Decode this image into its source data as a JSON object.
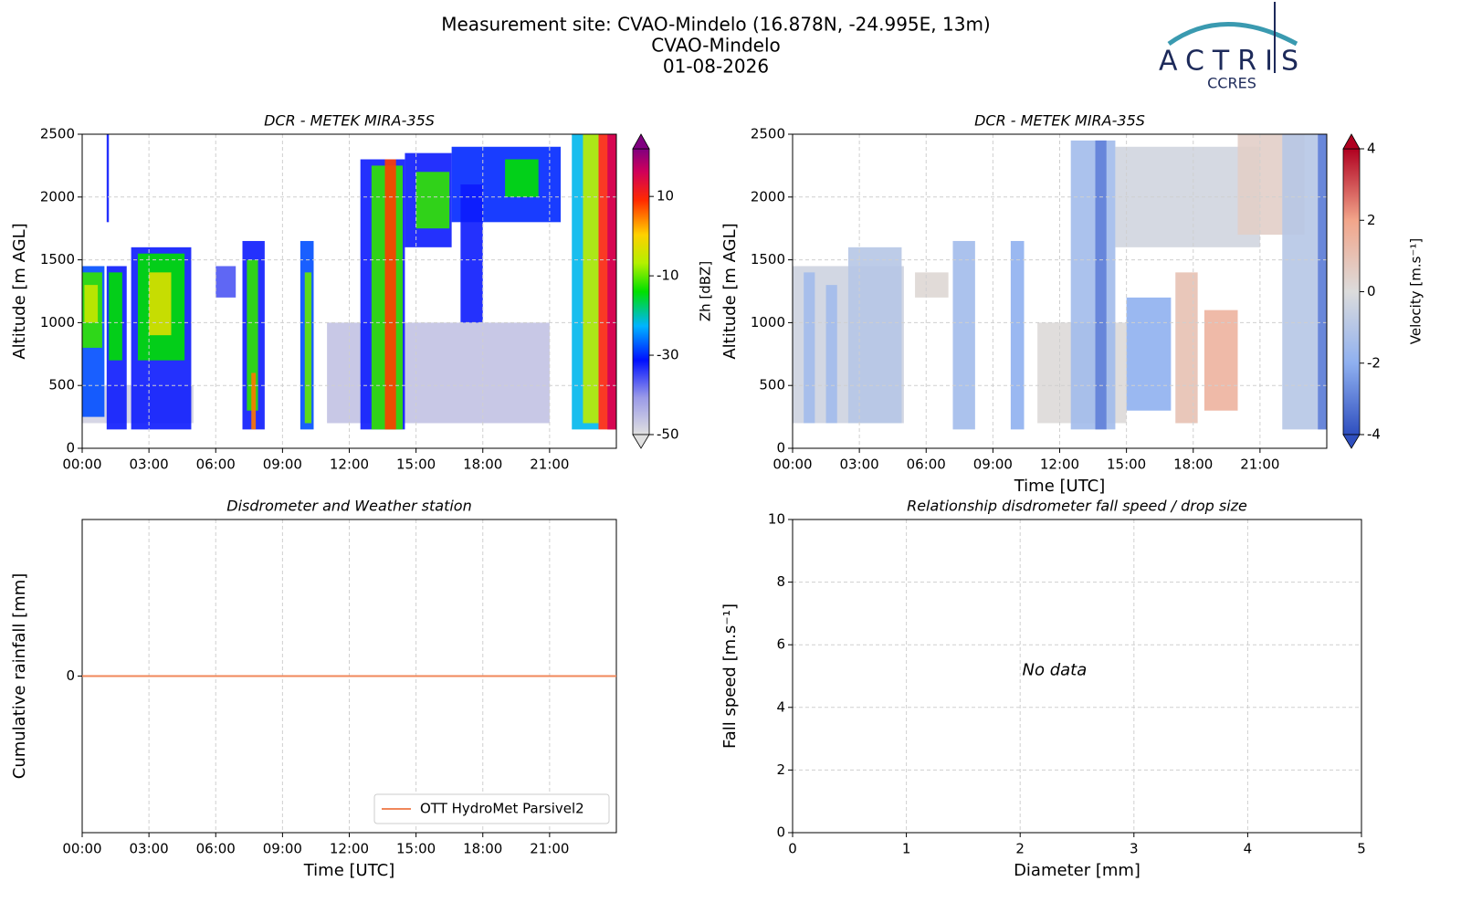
{
  "header": {
    "title_lines": [
      "Measurement site: CVAO-Mindelo (16.878N, -24.995E, 13m)",
      "CVAO-Mindelo",
      "01-08-2026"
    ],
    "logo": "ACTRIS",
    "logo_sub": "CCRES"
  },
  "chart_data": [
    {
      "type": "heatmap",
      "title": "DCR - METEK MIRA-35S",
      "ylabel": "Altitude [m AGL]",
      "xlim": [
        0,
        24
      ],
      "xticks": [
        {
          "value": 0,
          "label": "00:00"
        },
        {
          "value": 3,
          "label": "03:00"
        },
        {
          "value": 6,
          "label": "06:00"
        },
        {
          "value": 9,
          "label": "09:00"
        },
        {
          "value": 12,
          "label": "12:00"
        },
        {
          "value": 15,
          "label": "15:00"
        },
        {
          "value": 18,
          "label": "18:00"
        },
        {
          "value": 21,
          "label": "21:00"
        }
      ],
      "ylim": [
        0,
        2500
      ],
      "yticks": [
        0,
        500,
        1000,
        1500,
        2000,
        2500
      ],
      "grid": true,
      "colorbar": {
        "label": "Zh [dBZ]",
        "lim": [
          -50,
          22
        ],
        "ticks": [
          -50,
          -30,
          -10,
          10
        ],
        "colormap": "zh"
      },
      "cells": [
        [
          0,
          5,
          200,
          500,
          -48
        ],
        [
          11,
          21,
          200,
          1000,
          -46
        ],
        [
          0,
          1,
          250,
          1450,
          -28
        ],
        [
          0,
          0.9,
          800,
          1400,
          -12
        ],
        [
          0.1,
          0.7,
          1000,
          1300,
          -5
        ],
        [
          1.1,
          1.2,
          1800,
          2500,
          -32
        ],
        [
          1.1,
          2.0,
          150,
          1450,
          -32
        ],
        [
          1.2,
          1.8,
          700,
          1400,
          -14
        ],
        [
          2.2,
          4.9,
          150,
          1600,
          -32
        ],
        [
          2.5,
          4.6,
          700,
          1550,
          -14
        ],
        [
          3.0,
          4.0,
          900,
          1400,
          -3
        ],
        [
          6.0,
          6.9,
          1200,
          1450,
          -36
        ],
        [
          7.2,
          8.2,
          150,
          1650,
          -32
        ],
        [
          7.4,
          7.9,
          300,
          1500,
          -12
        ],
        [
          7.6,
          7.8,
          150,
          600,
          5
        ],
        [
          9.8,
          10.4,
          150,
          1650,
          -28
        ],
        [
          10.0,
          10.3,
          200,
          1400,
          -10
        ],
        [
          12.5,
          14.5,
          150,
          2300,
          -32
        ],
        [
          13.0,
          14.4,
          150,
          2250,
          -12
        ],
        [
          13.6,
          14.1,
          150,
          2300,
          8
        ],
        [
          14.5,
          16.6,
          1600,
          2350,
          -32
        ],
        [
          15.0,
          16.5,
          1750,
          2200,
          -12
        ],
        [
          16.6,
          21.5,
          1800,
          2400,
          -30
        ],
        [
          17.0,
          18.0,
          1000,
          2100,
          -32
        ],
        [
          19.0,
          20.5,
          2000,
          2300,
          -14
        ],
        [
          22.0,
          23.2,
          150,
          2500,
          -22
        ],
        [
          22.5,
          23.2,
          200,
          2500,
          -6
        ],
        [
          23.2,
          24,
          150,
          2500,
          10
        ],
        [
          23.6,
          24,
          150,
          2500,
          16
        ]
      ]
    },
    {
      "type": "heatmap",
      "title": "DCR - METEK MIRA-35S",
      "ylabel": "Altitude [m AGL]",
      "xlabel": "Time [UTC]",
      "xlim": [
        0,
        24
      ],
      "xticks": [
        {
          "value": 0,
          "label": "00:00"
        },
        {
          "value": 3,
          "label": "03:00"
        },
        {
          "value": 6,
          "label": "06:00"
        },
        {
          "value": 9,
          "label": "09:00"
        },
        {
          "value": 12,
          "label": "12:00"
        },
        {
          "value": 15,
          "label": "15:00"
        },
        {
          "value": 18,
          "label": "18:00"
        },
        {
          "value": 21,
          "label": "21:00"
        }
      ],
      "ylim": [
        0,
        2500
      ],
      "yticks": [
        0,
        500,
        1000,
        1500,
        2000,
        2500
      ],
      "grid": true,
      "colorbar": {
        "label": "Velocity [m.s⁻¹]",
        "lim": [
          -4,
          4
        ],
        "ticks": [
          -4,
          -2,
          0,
          2,
          4
        ],
        "colormap": "velocity"
      },
      "cells": [
        [
          0,
          5,
          200,
          1450,
          -0.4
        ],
        [
          0.5,
          1.0,
          200,
          1400,
          -1.5
        ],
        [
          1.5,
          2.0,
          200,
          1300,
          -1.5
        ],
        [
          2.5,
          4.9,
          200,
          1600,
          -1
        ],
        [
          5.5,
          7.0,
          1200,
          1400,
          0.2
        ],
        [
          7.2,
          8.2,
          150,
          1650,
          -1.5
        ],
        [
          9.8,
          10.4,
          150,
          1650,
          -2
        ],
        [
          11,
          15,
          200,
          1000,
          0.1
        ],
        [
          12.5,
          14.5,
          150,
          2450,
          -1.5
        ],
        [
          13.6,
          14.1,
          150,
          2450,
          -3
        ],
        [
          14.5,
          21,
          1600,
          2400,
          -0.3
        ],
        [
          15,
          17,
          300,
          1200,
          -2
        ],
        [
          17.2,
          18.2,
          200,
          1400,
          1
        ],
        [
          18.5,
          20.0,
          300,
          1100,
          1.5
        ],
        [
          20,
          23,
          1700,
          2500,
          0.5
        ],
        [
          22,
          24,
          150,
          2500,
          -1
        ],
        [
          23.6,
          24,
          150,
          2500,
          -3
        ]
      ]
    },
    {
      "type": "line",
      "title": "Disdrometer and Weather station",
      "ylabel": "Cumulative rainfall [mm]",
      "xlabel": "Time [UTC]",
      "xlim": [
        0,
        24
      ],
      "xticks": [
        {
          "value": 0,
          "label": "00:00"
        },
        {
          "value": 3,
          "label": "03:00"
        },
        {
          "value": 6,
          "label": "06:00"
        },
        {
          "value": 9,
          "label": "09:00"
        },
        {
          "value": 12,
          "label": "12:00"
        },
        {
          "value": 15,
          "label": "15:00"
        },
        {
          "value": 18,
          "label": "18:00"
        },
        {
          "value": 21,
          "label": "21:00"
        }
      ],
      "ylim": [
        -1,
        1
      ],
      "yticks": [
        0
      ],
      "grid": true,
      "legend": "lower right",
      "x": [
        0,
        24
      ],
      "series": [
        {
          "name": "OTT HydroMet Parsivel2",
          "color": "#f0875a",
          "values": [
            0,
            0
          ]
        }
      ]
    },
    {
      "type": "scatter",
      "title": "Relationship disdrometer fall speed / drop size",
      "ylabel": "Fall speed [m.s⁻¹]",
      "xlabel": "Diameter [mm]",
      "xlim": [
        0,
        5
      ],
      "xticks": [
        0,
        1,
        2,
        3,
        4,
        5
      ],
      "ylim": [
        0,
        10
      ],
      "yticks": [
        0,
        2,
        4,
        6,
        8,
        10
      ],
      "grid": true,
      "annotation": "No data"
    }
  ]
}
